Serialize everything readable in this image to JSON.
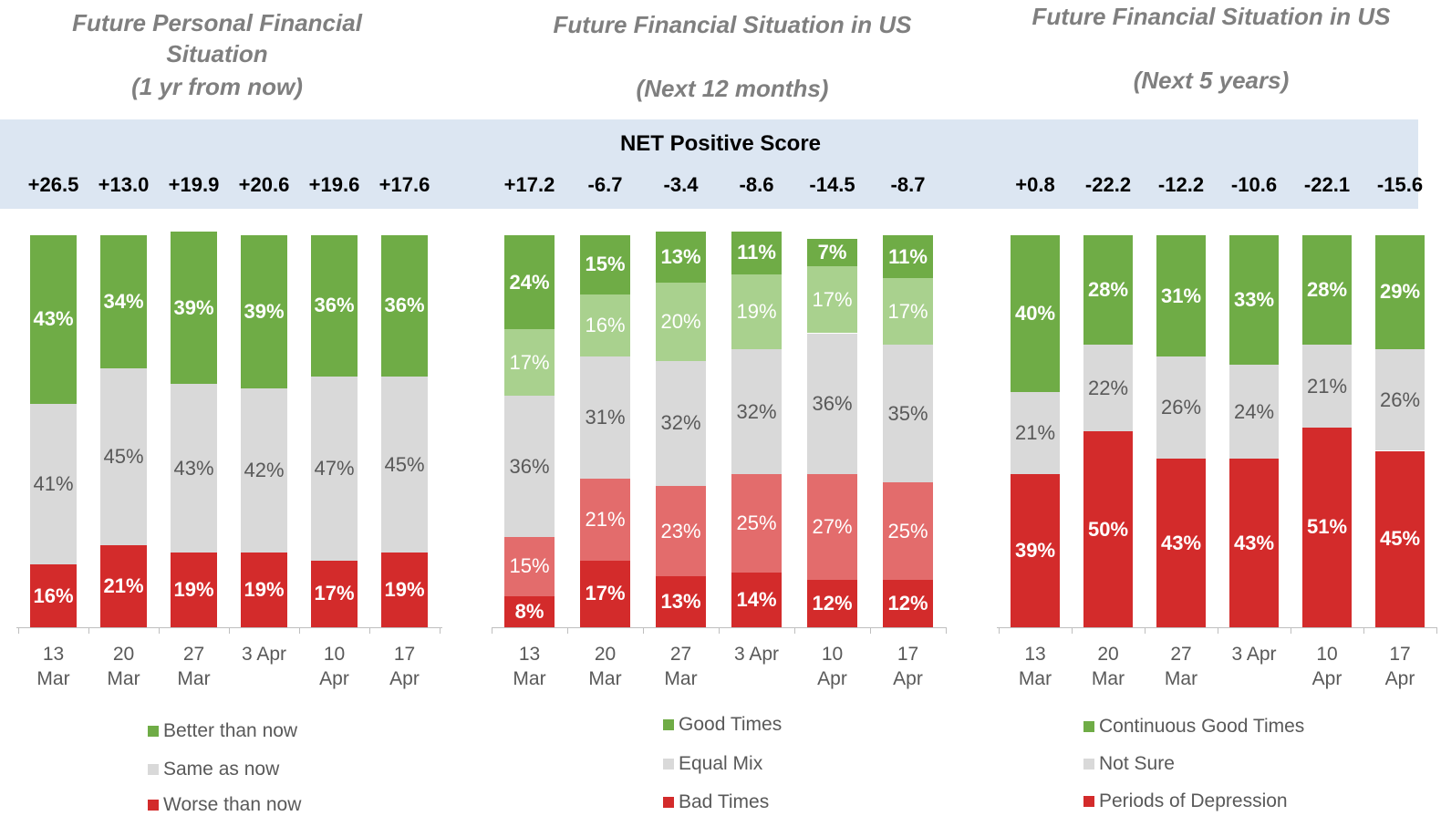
{
  "banner_title": "NET Positive Score",
  "chart_data": [
    {
      "type": "stacked-bar",
      "title": "Future Personal Financial Situation",
      "subtitle": "(1 yr from now)",
      "categories": [
        "13 Mar",
        "20 Mar",
        "27 Mar",
        "3 Apr",
        "10 Apr",
        "17 Apr"
      ],
      "ylim": [
        0,
        100
      ],
      "net_scores": [
        26.5,
        13.0,
        19.9,
        20.6,
        19.6,
        17.6
      ],
      "net_score_labels": [
        "+26.5",
        "+13.0",
        "+19.9",
        "+20.6",
        "+19.6",
        "+17.6"
      ],
      "series": [
        {
          "name": "Worse than now",
          "color": "#d32b2b",
          "label_color": "#ffffff",
          "values": [
            16,
            21,
            19,
            19,
            17,
            19
          ],
          "value_labels": [
            "16%",
            "21%",
            "19%",
            "19%",
            "17%",
            "19%"
          ]
        },
        {
          "name": "Same as now",
          "color": "#d9d9d9",
          "label_color": "#595959",
          "values": [
            41,
            45,
            43,
            42,
            47,
            45
          ],
          "value_labels": [
            "41%",
            "45%",
            "43%",
            "42%",
            "47%",
            "45%"
          ]
        },
        {
          "name": "Better than now",
          "color": "#6fac46",
          "label_color": "#ffffff",
          "values": [
            43,
            34,
            39,
            39,
            36,
            36
          ],
          "value_labels": [
            "43%",
            "34%",
            "39%",
            "39%",
            "36%",
            "36%"
          ]
        }
      ]
    },
    {
      "type": "stacked-bar",
      "title": "Future Financial Situation in US",
      "subtitle": "(Next 12 months)",
      "categories": [
        "13 Mar",
        "20 Mar",
        "27 Mar",
        "3 Apr",
        "10 Apr",
        "17 Apr"
      ],
      "ylim": [
        0,
        100
      ],
      "net_scores": [
        17.2,
        -6.7,
        -3.4,
        -8.6,
        -14.5,
        -8.7
      ],
      "net_score_labels": [
        "+17.2",
        "-6.7",
        "-3.4",
        "-8.6",
        "-14.5",
        "-8.7"
      ],
      "series": [
        {
          "name": "Bad Times",
          "color": "#d32b2b",
          "label_color": "#ffffff",
          "values": [
            8,
            17,
            13,
            14,
            12,
            12
          ],
          "value_labels": [
            "8%",
            "17%",
            "13%",
            "14%",
            "12%",
            "12%"
          ]
        },
        {
          "color": "#e36c6c",
          "label_color": "#ffffff",
          "values": [
            15,
            21,
            23,
            25,
            27,
            25
          ],
          "value_labels": [
            "15%",
            "21%",
            "23%",
            "25%",
            "27%",
            "25%"
          ]
        },
        {
          "name": "Equal Mix",
          "color": "#d9d9d9",
          "label_color": "#595959",
          "values": [
            36,
            31,
            32,
            32,
            36,
            35
          ],
          "value_labels": [
            "36%",
            "31%",
            "32%",
            "32%",
            "36%",
            "35%"
          ]
        },
        {
          "color": "#a9d18e",
          "label_color": "#ffffff",
          "values": [
            17,
            16,
            20,
            19,
            17,
            17
          ],
          "value_labels": [
            "17%",
            "16%",
            "20%",
            "19%",
            "17%",
            "17%"
          ]
        },
        {
          "name": "Good Times",
          "color": "#6fac46",
          "label_color": "#ffffff",
          "values": [
            24,
            15,
            13,
            11,
            7,
            11
          ],
          "value_labels": [
            "24%",
            "15%",
            "13%",
            "11%",
            "7%",
            "11%"
          ]
        }
      ]
    },
    {
      "type": "stacked-bar",
      "title": "Future Financial Situation in US",
      "subtitle": "(Next 5 years)",
      "categories": [
        "13 Mar",
        "20 Mar",
        "27 Mar",
        "3 Apr",
        "10 Apr",
        "17 Apr"
      ],
      "ylim": [
        0,
        100
      ],
      "net_scores": [
        0.8,
        -22.2,
        -12.2,
        -10.6,
        -22.1,
        -15.6
      ],
      "net_score_labels": [
        "+0.8",
        "-22.2",
        "-12.2",
        "-10.6",
        "-22.1",
        "-15.6"
      ],
      "series": [
        {
          "name": "Periods of Depression",
          "color": "#d32b2b",
          "label_color": "#ffffff",
          "values": [
            39,
            50,
            43,
            43,
            51,
            45
          ],
          "value_labels": [
            "39%",
            "50%",
            "43%",
            "43%",
            "51%",
            "45%"
          ]
        },
        {
          "name": "Not Sure",
          "color": "#d9d9d9",
          "label_color": "#595959",
          "values": [
            21,
            22,
            26,
            24,
            21,
            26
          ],
          "value_labels": [
            "21%",
            "22%",
            "26%",
            "24%",
            "21%",
            "26%"
          ]
        },
        {
          "name": "Continuous Good Times",
          "color": "#6fac46",
          "label_color": "#ffffff",
          "values": [
            40,
            28,
            31,
            33,
            28,
            29
          ],
          "value_labels": [
            "40%",
            "28%",
            "31%",
            "33%",
            "28%",
            "29%"
          ]
        }
      ]
    }
  ]
}
